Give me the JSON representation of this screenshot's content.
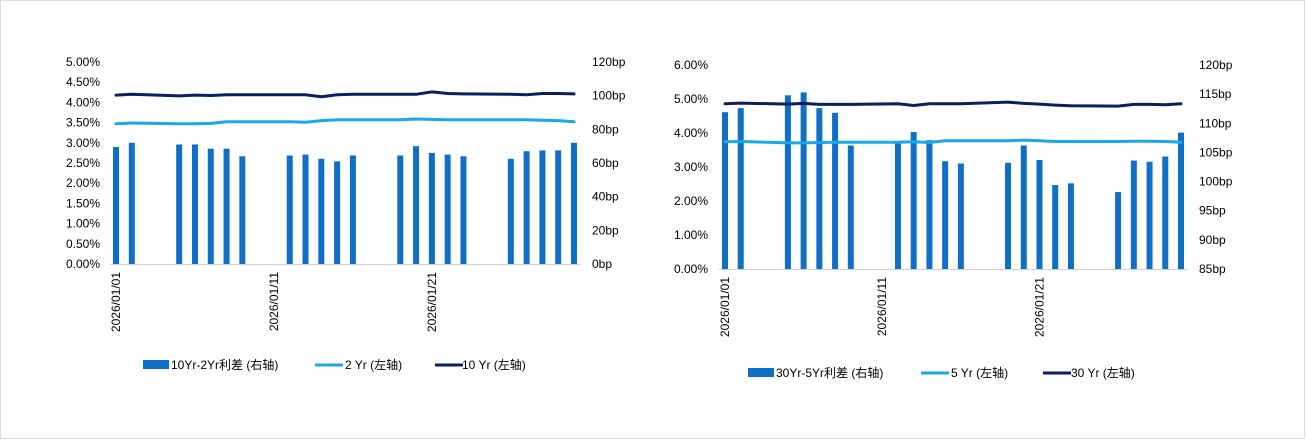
{
  "chart_data": [
    {
      "type": "bar",
      "title": "",
      "categories": [
        "2026/01/01",
        "2026/01/02",
        "2026/01/05",
        "2026/01/06",
        "2026/01/07",
        "2026/01/08",
        "2026/01/09",
        "2026/01/12",
        "2026/01/13",
        "2026/01/14",
        "2026/01/15",
        "2026/01/16",
        "2026/01/19",
        "2026/01/20",
        "2026/01/21",
        "2026/01/22",
        "2026/01/23",
        "2026/01/26",
        "2026/01/27",
        "2026/01/28",
        "2026/01/29",
        "2026/01/30"
      ],
      "x_ticks": [
        "2026/01/01",
        "2026/01/11",
        "2026/01/21"
      ],
      "left_axis": {
        "range": [
          0,
          5.0
        ],
        "ticks": [
          "0.00%",
          "0.50%",
          "1.00%",
          "1.50%",
          "2.00%",
          "2.50%",
          "3.00%",
          "3.50%",
          "4.00%",
          "4.50%",
          "5.00%"
        ]
      },
      "right_axis": {
        "range": [
          0,
          120
        ],
        "ticks": [
          "0bp",
          "20bp",
          "40bp",
          "60bp",
          "80bp",
          "100bp",
          "120bp"
        ]
      },
      "series": [
        {
          "name": "10Yr-2Yr利差 (右轴)",
          "type": "bar",
          "axis": "right",
          "color": "#0f6fc6",
          "values": [
            69.5,
            72,
            71,
            71,
            68.5,
            68.5,
            64,
            64.5,
            65,
            62.5,
            61,
            64.5,
            64.5,
            70,
            66,
            65,
            64,
            62.5,
            67,
            67.5,
            67.5,
            72
          ]
        },
        {
          "name": "2 Yr (左轴)",
          "type": "line",
          "axis": "left",
          "color": "#1aa9e8",
          "values": [
            3.47,
            3.49,
            3.47,
            3.47,
            3.48,
            3.52,
            3.52,
            3.52,
            3.51,
            3.55,
            3.57,
            3.57,
            3.57,
            3.59,
            3.58,
            3.57,
            3.57,
            3.57,
            3.57,
            3.56,
            3.55,
            3.52
          ]
        },
        {
          "name": "10 Yr (左轴)",
          "type": "line",
          "axis": "left",
          "color": "#0b1f5c",
          "values": [
            4.18,
            4.2,
            4.16,
            4.18,
            4.17,
            4.19,
            4.19,
            4.19,
            4.19,
            4.14,
            4.19,
            4.2,
            4.2,
            4.2,
            4.26,
            4.22,
            4.21,
            4.2,
            4.19,
            4.22,
            4.22,
            4.21
          ]
        }
      ]
    },
    {
      "type": "bar",
      "title": "",
      "categories": [
        "2026/01/01",
        "2026/01/02",
        "2026/01/05",
        "2026/01/06",
        "2026/01/07",
        "2026/01/08",
        "2026/01/09",
        "2026/01/12",
        "2026/01/13",
        "2026/01/14",
        "2026/01/15",
        "2026/01/16",
        "2026/01/19",
        "2026/01/20",
        "2026/01/21",
        "2026/01/22",
        "2026/01/23",
        "2026/01/26",
        "2026/01/27",
        "2026/01/28",
        "2026/01/29",
        "2026/01/30"
      ],
      "x_ticks": [
        "2026/01/01",
        "2026/01/11",
        "2026/01/21"
      ],
      "left_axis": {
        "range": [
          0,
          6.0
        ],
        "ticks": [
          "0.00%",
          "1.00%",
          "2.00%",
          "3.00%",
          "4.00%",
          "5.00%",
          "6.00%"
        ]
      },
      "right_axis": {
        "range": [
          85,
          120
        ],
        "ticks": [
          "85bp",
          "90bp",
          "95bp",
          "100bp",
          "105bp",
          "110bp",
          "115bp",
          "120bp"
        ]
      },
      "series": [
        {
          "name": "30Yr-5Yr利差 (右轴)",
          "type": "bar",
          "axis": "right",
          "color": "#0f6fc6",
          "values": [
            111.9,
            112.6,
            114.8,
            115.3,
            112.6,
            111.8,
            106.2,
            106.9,
            108.5,
            107.1,
            103.5,
            103.1,
            103.2,
            106.2,
            103.7,
            99.4,
            99.7,
            98.2,
            103.6,
            103.4,
            104.3,
            108.4
          ]
        },
        {
          "name": "5 Yr (左轴)",
          "type": "line",
          "axis": "left",
          "color": "#1aa9e8",
          "values": [
            3.74,
            3.75,
            3.71,
            3.71,
            3.72,
            3.73,
            3.73,
            3.73,
            3.74,
            3.72,
            3.77,
            3.77,
            3.77,
            3.79,
            3.77,
            3.75,
            3.75,
            3.75,
            3.76,
            3.76,
            3.75,
            3.73
          ]
        },
        {
          "name": "30 Yr (左轴)",
          "type": "line",
          "axis": "left",
          "color": "#0b1f5c",
          "values": [
            4.86,
            4.88,
            4.85,
            4.87,
            4.84,
            4.84,
            4.84,
            4.86,
            4.81,
            4.86,
            4.86,
            4.86,
            4.91,
            4.87,
            4.85,
            4.82,
            4.8,
            4.79,
            4.84,
            4.84,
            4.83,
            4.86
          ]
        }
      ]
    }
  ]
}
